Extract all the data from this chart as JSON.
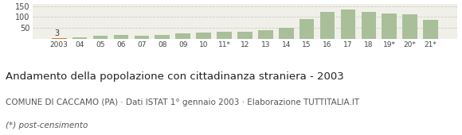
{
  "categories": [
    "2003",
    "04",
    "05",
    "06",
    "07",
    "08",
    "09",
    "10",
    "11*",
    "12",
    "13",
    "14",
    "15",
    "16",
    "17",
    "18",
    "19*",
    "20*",
    "21*"
  ],
  "values": [
    3,
    7,
    14,
    19,
    15,
    19,
    25,
    27,
    33,
    33,
    40,
    50,
    90,
    122,
    133,
    122,
    117,
    114,
    87
  ],
  "bar_color": "#a8bf9a",
  "first_bar_color": "#d47a2a",
  "annotation_value": "3",
  "title": "Andamento della popolazione con cittadinanza straniera - 2003",
  "subtitle": "COMUNE DI CACCAMO (PA) · Dati ISTAT 1° gennaio 2003 · Elaborazione TUTTITALIA.IT",
  "footnote": "(*) post-censimento",
  "ylim": [
    0,
    160
  ],
  "yticks": [
    50,
    100,
    150
  ],
  "background_color": "#f0f0e8",
  "grid_color": "#cccccc",
  "title_fontsize": 9.5,
  "subtitle_fontsize": 7.5,
  "footnote_fontsize": 7.5
}
